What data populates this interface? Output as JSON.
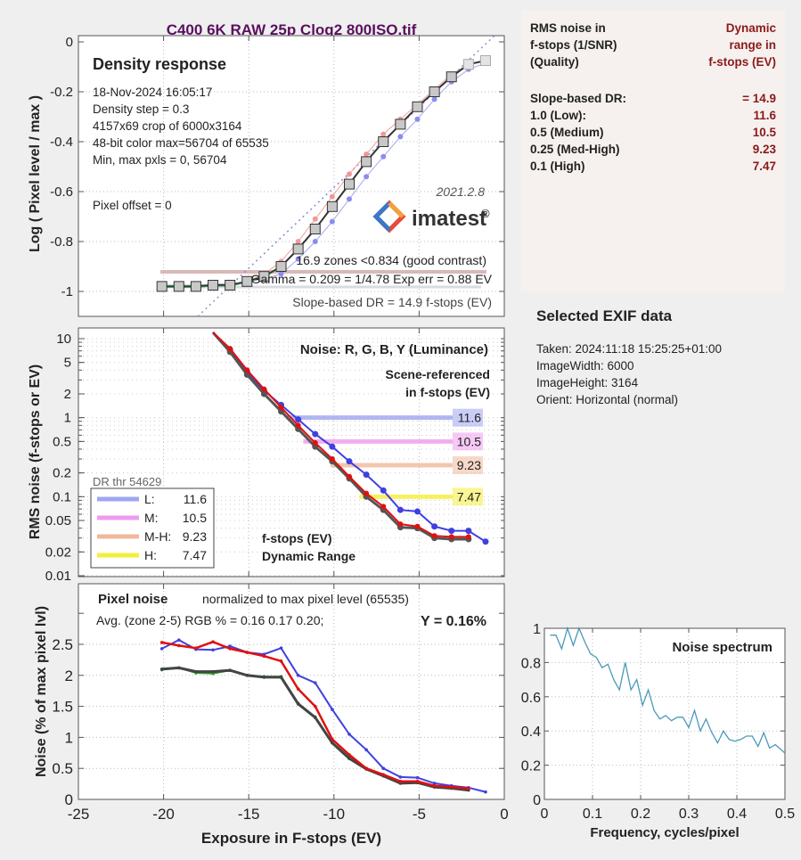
{
  "title": "C400 6K RAW 25p Clog2 800ISO.tif",
  "colors": {
    "title": "#5a0f5e",
    "red": "#e01010",
    "green": "#2a9a2a",
    "blue": "#4040e0",
    "luminance": "#444444",
    "dr_value": "#8b1a1a",
    "spectrum": "#4a9ab8",
    "low": "#9fa6ef",
    "medium": "#ee9cf0",
    "medhigh": "#f0b89c",
    "high": "#f4ef3a"
  },
  "info_box": {
    "header_left": [
      "RMS noise in",
      "f-stops (1/SNR)",
      "(Quality)"
    ],
    "header_right": [
      "Dynamic",
      "range in",
      "f-stops (EV)"
    ],
    "rows": [
      {
        "label": "Slope-based DR:",
        "value": "= 14.9"
      },
      {
        "label": "1.0   (Low):",
        "value": "11.6"
      },
      {
        "label": "0.5   (Medium)",
        "value": "10.5"
      },
      {
        "label": "0.25 (Med-High)",
        "value": "9.23"
      },
      {
        "label": "0.1   (High)",
        "value": "7.47"
      }
    ]
  },
  "exif": {
    "title": "Selected EXIF data",
    "lines": [
      "Taken: 2024:11:18 15:25:25+01:00",
      "ImageWidth:  6000",
      "ImageHeight:  3164",
      "Orient: Horizontal (normal)"
    ]
  },
  "logo": {
    "version": "2021.2.8",
    "name": "imatest",
    "mark": "®"
  },
  "chart_data": [
    {
      "type": "line",
      "title": "Density response",
      "ylabel": "Log ( Pixel level / max )",
      "xlim": [
        -25,
        0
      ],
      "ylim": [
        -1.1,
        0
      ],
      "yticks": [
        0,
        -0.2,
        -0.4,
        -0.6,
        -0.8,
        -1
      ],
      "ytick_labels": [
        "0",
        "-0.2",
        "-0.4",
        "-0.6",
        "-0.8",
        "-1"
      ],
      "xticks": [
        -25,
        -20,
        -15,
        -10,
        -5,
        0
      ],
      "grid": true,
      "annotations": [
        "18-Nov-2024 16:05:17",
        "Density step = 0.3",
        "4157x69 crop of 6000x3164",
        "48-bit color  max=56704 of 65535",
        "Min, max pxls = 0, 56704",
        "Pixel offset = 0"
      ],
      "stats": [
        "16.9 zones <0.834 (good contrast)",
        "Gamma = 0.209 = 1/4.78  Exp err = 0.88 EV",
        "Slope-based DR = 14.9 f-stops (EV)"
      ],
      "x": [
        -20.1,
        -19.1,
        -18.1,
        -17.1,
        -16.1,
        -15.1,
        -14.1,
        -13.1,
        -12.1,
        -11.1,
        -10.1,
        -9.1,
        -8.1,
        -7.1,
        -6.1,
        -5.1,
        -4.1,
        -3.1,
        -2.1,
        -1.1
      ],
      "series": [
        {
          "name": "Y",
          "values": [
            -0.98,
            -0.98,
            -0.98,
            -0.975,
            -0.975,
            -0.96,
            -0.94,
            -0.9,
            -0.83,
            -0.75,
            -0.66,
            -0.57,
            -0.48,
            -0.4,
            -0.33,
            -0.26,
            -0.2,
            -0.14,
            -0.09,
            -0.075
          ]
        },
        {
          "name": "R",
          "values": [
            -0.98,
            -0.98,
            -0.98,
            -0.975,
            -0.975,
            -0.96,
            -0.93,
            -0.88,
            -0.8,
            -0.71,
            -0.62,
            -0.53,
            -0.45,
            -0.37,
            -0.31,
            -0.25,
            -0.19,
            -0.13,
            -0.09,
            -0.075
          ]
        },
        {
          "name": "B",
          "values": [
            -0.975,
            -0.975,
            -0.975,
            -0.97,
            -0.97,
            -0.96,
            -0.95,
            -0.93,
            -0.87,
            -0.8,
            -0.72,
            -0.63,
            -0.54,
            -0.46,
            -0.38,
            -0.31,
            -0.23,
            -0.16,
            -0.11,
            -0.085
          ]
        }
      ]
    },
    {
      "type": "line",
      "title": "Noise: R, G, B, Y (Luminance)",
      "subtitle": [
        "Scene-referenced",
        "in f-stops (EV)"
      ],
      "footer": [
        "f-stops (EV)",
        "Dynamic Range"
      ],
      "ylabel": "RMS noise (f-stops or EV)",
      "yscale": "log",
      "xlim": [
        -25,
        0
      ],
      "ylim": [
        0.01,
        12
      ],
      "yticks": [
        10,
        5,
        2,
        1,
        0.5,
        0.2,
        0.1,
        0.05,
        0.02,
        0.01
      ],
      "ytick_labels": [
        "10",
        "5",
        "2",
        "1",
        "0.5",
        "0.2",
        "0.1",
        "0.05",
        "0.02",
        "0.01"
      ],
      "grid": true,
      "legend": {
        "title": "DR thr 54629",
        "position": "bottom-left",
        "entries": [
          {
            "label": "L:",
            "value": "11.6"
          },
          {
            "label": "M:",
            "value": "10.5"
          },
          {
            "label": "M-H:",
            "value": "9.23"
          },
          {
            "label": "H:",
            "value": "7.47"
          }
        ]
      },
      "thresholds": [
        {
          "name": "Low",
          "y": 1.0,
          "dr": "11.6",
          "x_start": -12.8
        },
        {
          "name": "Medium",
          "y": 0.5,
          "dr": "10.5",
          "x_start": -11.8
        },
        {
          "name": "Med-High",
          "y": 0.25,
          "dr": "9.23",
          "x_start": -10.2
        },
        {
          "name": "High",
          "y": 0.1,
          "dr": "7.47",
          "x_start": -8.5
        }
      ],
      "x": [
        -17.1,
        -16.1,
        -15.1,
        -14.1,
        -13.1,
        -12.1,
        -11.1,
        -10.1,
        -9.1,
        -8.1,
        -7.1,
        -6.1,
        -5.1,
        -4.1,
        -3.1,
        -2.1,
        -1.1
      ],
      "series": [
        {
          "name": "R",
          "values": [
            12,
            7.5,
            4.0,
            2.3,
            1.35,
            0.8,
            0.48,
            0.3,
            0.18,
            0.11,
            0.075,
            0.045,
            0.042,
            0.032,
            0.031,
            0.031,
            null
          ]
        },
        {
          "name": "Y",
          "values": [
            12,
            6.8,
            3.5,
            2.0,
            1.2,
            0.72,
            0.43,
            0.28,
            0.17,
            0.1,
            0.068,
            0.041,
            0.04,
            0.03,
            0.029,
            0.029,
            null
          ]
        },
        {
          "name": "B",
          "values": [
            12,
            7.2,
            3.8,
            2.2,
            1.45,
            0.95,
            0.62,
            0.43,
            0.28,
            0.19,
            0.12,
            0.068,
            0.065,
            0.042,
            0.037,
            0.037,
            0.027
          ]
        }
      ]
    },
    {
      "type": "line",
      "title": "Pixel noise",
      "subtitle": "normalized to max pixel level (65535)",
      "annotation": "Avg. (zone 2-5) RGB % = 0.16  0.17  0.20;",
      "y_summary": "Y = 0.16%",
      "xlabel": "Exposure in F-stops (EV)",
      "ylabel": "Noise (% of max pixel lvl)",
      "xlim": [
        -25,
        0
      ],
      "ylim": [
        0,
        3.2
      ],
      "xticks": [
        -25,
        -20,
        -15,
        -10,
        -5,
        0
      ],
      "xtick_labels": [
        "-25",
        "-20",
        "-15",
        "-10",
        "-5",
        "0"
      ],
      "yticks": [
        0,
        0.5,
        1,
        1.5,
        2,
        2.5
      ],
      "ytick_labels": [
        "0",
        "0.5",
        "1",
        "1.5",
        "2",
        "2.5"
      ],
      "grid": true,
      "x": [
        -20.1,
        -19.1,
        -18.1,
        -17.1,
        -16.1,
        -15.1,
        -14.1,
        -13.1,
        -12.1,
        -11.1,
        -10.1,
        -9.1,
        -8.1,
        -7.1,
        -6.1,
        -5.1,
        -4.1,
        -3.1,
        -2.1,
        -1.1
      ],
      "series": [
        {
          "name": "R",
          "values": [
            2.53,
            2.48,
            2.44,
            2.54,
            2.43,
            2.37,
            2.31,
            2.23,
            1.78,
            1.5,
            0.97,
            0.72,
            0.5,
            0.4,
            0.29,
            0.29,
            0.22,
            0.2,
            0.18,
            null
          ]
        },
        {
          "name": "G",
          "values": [
            2.09,
            2.12,
            2.04,
            2.03,
            2.08,
            2.0,
            1.98,
            1.98,
            1.55,
            1.33,
            0.92,
            0.68,
            0.5,
            0.38,
            0.27,
            0.27,
            0.21,
            0.19,
            0.16,
            null
          ]
        },
        {
          "name": "B",
          "values": [
            2.43,
            2.57,
            2.42,
            2.41,
            2.47,
            2.37,
            2.34,
            2.44,
            2.0,
            1.88,
            1.45,
            1.05,
            0.8,
            0.5,
            0.36,
            0.35,
            0.26,
            0.22,
            0.19,
            0.12
          ]
        },
        {
          "name": "Y",
          "values": [
            2.1,
            2.12,
            2.06,
            2.06,
            2.08,
            2.0,
            1.97,
            1.97,
            1.54,
            1.32,
            0.91,
            0.66,
            0.49,
            0.38,
            0.26,
            0.27,
            0.2,
            0.18,
            0.15,
            null
          ]
        }
      ]
    },
    {
      "type": "line",
      "title": "Noise spectrum",
      "xlabel": "Frequency, cycles/pixel",
      "xlim": [
        0,
        0.5
      ],
      "ylim": [
        0,
        1
      ],
      "xticks": [
        0,
        0.1,
        0.2,
        0.3,
        0.4,
        0.5
      ],
      "xtick_labels": [
        "0",
        "0.1",
        "0.2",
        "0.3",
        "0.4",
        "0.5"
      ],
      "yticks": [
        0,
        0.2,
        0.4,
        0.6,
        0.8,
        1
      ],
      "ytick_labels": [
        "0",
        "0.2",
        "0.4",
        "0.6",
        "0.8",
        "1"
      ],
      "grid": true,
      "x": [
        0.012,
        0.024,
        0.036,
        0.048,
        0.06,
        0.072,
        0.084,
        0.096,
        0.108,
        0.12,
        0.132,
        0.144,
        0.156,
        0.168,
        0.18,
        0.192,
        0.204,
        0.216,
        0.228,
        0.24,
        0.252,
        0.264,
        0.276,
        0.288,
        0.3,
        0.312,
        0.324,
        0.336,
        0.348,
        0.36,
        0.372,
        0.384,
        0.396,
        0.408,
        0.42,
        0.432,
        0.444,
        0.456,
        0.468,
        0.48,
        0.492,
        0.5
      ],
      "values": [
        0.96,
        0.96,
        0.88,
        1.0,
        0.9,
        1.0,
        0.92,
        0.85,
        0.83,
        0.77,
        0.79,
        0.7,
        0.64,
        0.8,
        0.64,
        0.7,
        0.55,
        0.64,
        0.52,
        0.47,
        0.49,
        0.46,
        0.48,
        0.48,
        0.42,
        0.52,
        0.4,
        0.47,
        0.39,
        0.33,
        0.4,
        0.35,
        0.34,
        0.35,
        0.37,
        0.37,
        0.31,
        0.39,
        0.3,
        0.32,
        0.29,
        0.27
      ]
    }
  ]
}
